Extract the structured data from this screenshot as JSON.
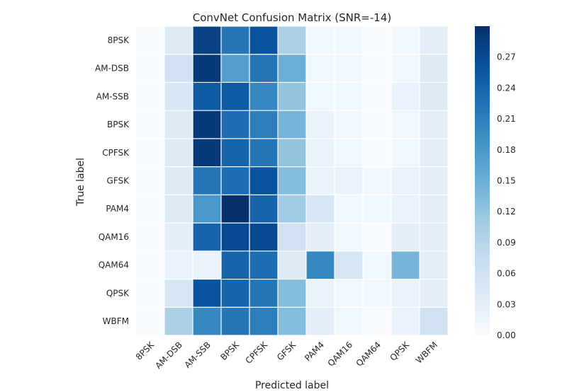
{
  "chart_data": {
    "type": "heatmap",
    "title": "ConvNet Confusion Matrix (SNR=-14)",
    "xlabel": "Predicted label",
    "ylabel": "True label",
    "row_labels": [
      "8PSK",
      "AM-DSB",
      "AM-SSB",
      "BPSK",
      "CPFSK",
      "GFSK",
      "PAM4",
      "QAM16",
      "QAM64",
      "QPSK",
      "WBFM"
    ],
    "col_labels": [
      "8PSK",
      "AM-DSB",
      "AM-SSB",
      "BPSK",
      "CPFSK",
      "GFSK",
      "PAM4",
      "QAM16",
      "QAM64",
      "QPSK",
      "WBFM"
    ],
    "values": [
      [
        0.0,
        0.04,
        0.28,
        0.22,
        0.26,
        0.1,
        0.01,
        0.01,
        0.0,
        0.01,
        0.03
      ],
      [
        0.0,
        0.06,
        0.29,
        0.17,
        0.22,
        0.15,
        0.01,
        0.01,
        0.0,
        0.01,
        0.04
      ],
      [
        0.0,
        0.05,
        0.25,
        0.25,
        0.2,
        0.12,
        0.01,
        0.01,
        0.0,
        0.02,
        0.04
      ],
      [
        0.0,
        0.04,
        0.29,
        0.23,
        0.21,
        0.14,
        0.02,
        0.01,
        0.0,
        0.01,
        0.03
      ],
      [
        0.0,
        0.04,
        0.29,
        0.24,
        0.22,
        0.12,
        0.02,
        0.01,
        0.0,
        0.01,
        0.03
      ],
      [
        0.0,
        0.04,
        0.22,
        0.23,
        0.26,
        0.13,
        0.02,
        0.02,
        0.01,
        0.02,
        0.03
      ],
      [
        0.0,
        0.04,
        0.18,
        0.3,
        0.24,
        0.11,
        0.05,
        0.01,
        0.01,
        0.02,
        0.03
      ],
      [
        0.0,
        0.03,
        0.24,
        0.27,
        0.27,
        0.06,
        0.03,
        0.01,
        0.0,
        0.03,
        0.03
      ],
      [
        0.0,
        0.02,
        0.02,
        0.24,
        0.23,
        0.04,
        0.2,
        0.05,
        0.01,
        0.14,
        0.03
      ],
      [
        0.0,
        0.05,
        0.26,
        0.24,
        0.22,
        0.13,
        0.02,
        0.01,
        0.01,
        0.02,
        0.03
      ],
      [
        0.0,
        0.1,
        0.2,
        0.22,
        0.21,
        0.13,
        0.03,
        0.01,
        0.0,
        0.02,
        0.06
      ]
    ],
    "vmin": 0.0,
    "vmax": 0.3,
    "colorbar_ticks": [
      "0.00",
      "0.03",
      "0.06",
      "0.09",
      "0.12",
      "0.15",
      "0.18",
      "0.21",
      "0.24",
      "0.27"
    ],
    "colormap": "Blues",
    "colormap_stops": [
      "#f7fbff",
      "#deebf7",
      "#c6dbef",
      "#9ecae1",
      "#6baed6",
      "#4292c6",
      "#2171b5",
      "#08519c",
      "#08306b"
    ],
    "grid": true,
    "grid_color": "#ffffff"
  }
}
